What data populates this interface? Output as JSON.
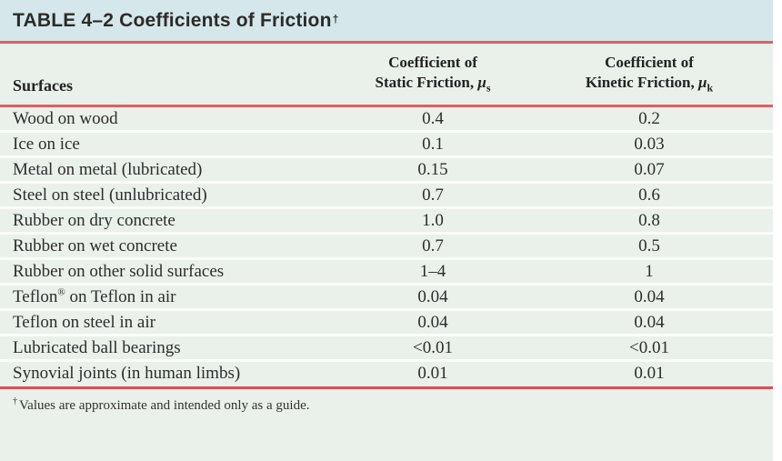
{
  "colors": {
    "title_bar_bg": "#d5e7ea",
    "body_bg": "#e9f1ea",
    "rule_red": "#e25d64",
    "bottom_rule_red": "#d94f58",
    "row_divider": "#fafcf9",
    "text": "#2d2d2d"
  },
  "title": {
    "text": "TABLE 4–2  Coefficients of Friction",
    "dagger": "†"
  },
  "columns": {
    "surfaces": "Surfaces",
    "static": {
      "line1": "Coefficient of",
      "line2": "Static Friction, ",
      "symbol": "μ",
      "subscript": "s"
    },
    "kinetic": {
      "line1": "Coefficient of",
      "line2": "Kinetic Friction, ",
      "symbol": "μ",
      "subscript": "k"
    }
  },
  "rows": [
    {
      "surface": "Wood on wood",
      "static": "0.4",
      "kinetic": "0.2"
    },
    {
      "surface": "Ice on ice",
      "static": "0.1",
      "kinetic": "0.03"
    },
    {
      "surface": "Metal on metal (lubricated)",
      "static": "0.15",
      "kinetic": "0.07"
    },
    {
      "surface": "Steel on steel (unlubricated)",
      "static": "0.7",
      "kinetic": "0.6"
    },
    {
      "surface": "Rubber on dry concrete",
      "static": "1.0",
      "kinetic": "0.8"
    },
    {
      "surface": "Rubber on wet concrete",
      "static": "0.7",
      "kinetic": "0.5"
    },
    {
      "surface": "Rubber on other solid surfaces",
      "static": "1–4",
      "kinetic": "1"
    },
    {
      "surface": "Teflon® on Teflon in air",
      "static": "0.04",
      "kinetic": "0.04"
    },
    {
      "surface": "Teflon on steel in air",
      "static": "0.04",
      "kinetic": "0.04"
    },
    {
      "surface": "Lubricated ball bearings",
      "static": "<0.01",
      "kinetic": "<0.01"
    },
    {
      "surface": "Synovial joints (in human limbs)",
      "static": "0.01",
      "kinetic": "0.01"
    }
  ],
  "footnote": {
    "marker": "†",
    "text": "Values are approximate and intended only as a guide."
  }
}
